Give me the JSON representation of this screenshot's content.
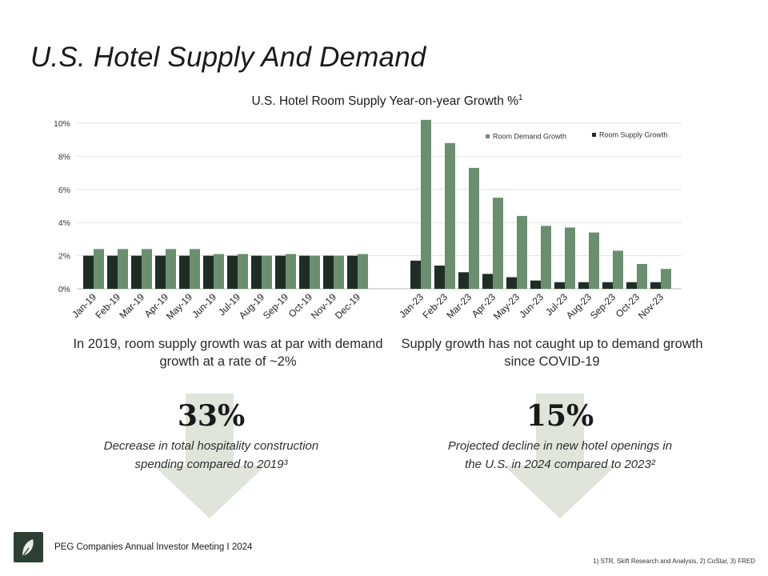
{
  "slide": {
    "title": "U.S. Hotel Supply And Demand"
  },
  "colors": {
    "demand": "#6a8f6f",
    "supply": "#1f2e25",
    "arrow": "#dfe5db",
    "gridline": "#e3e3e3",
    "logo_bg": "#2c3f33",
    "logo_leaf": "#e9ede4"
  },
  "chart_data": {
    "type": "bar",
    "title": "U.S. Hotel Room Supply Year-on-year Growth %",
    "title_superscript": "1",
    "xlabel": "",
    "ylabel": "",
    "ylim": [
      0,
      10
    ],
    "yticks": [
      0,
      2,
      4,
      6,
      8,
      10
    ],
    "ytick_labels": [
      "0%",
      "2%",
      "4%",
      "6%",
      "8%",
      "10%"
    ],
    "legend_position": "top-right",
    "groups": [
      {
        "categories": [
          "Jan-19",
          "Feb-19",
          "Mar-19",
          "Apr-19",
          "May-19",
          "Jun-19",
          "Jul-19",
          "Aug-19",
          "Sep-19",
          "Oct-19",
          "Nov-19",
          "Dec-19"
        ],
        "series": [
          {
            "name": "Room Supply Growth",
            "values": [
              2.0,
              2.0,
              2.0,
              2.0,
              2.0,
              2.0,
              2.0,
              2.0,
              2.0,
              2.0,
              2.0,
              2.0
            ]
          },
          {
            "name": "Room Demand Growth",
            "values": [
              2.4,
              2.4,
              2.4,
              2.4,
              2.4,
              2.1,
              2.1,
              2.0,
              2.1,
              2.0,
              2.0,
              2.1
            ]
          }
        ]
      },
      {
        "categories": [
          "Jan-23",
          "Feb-23",
          "Mar-23",
          "Apr-23",
          "May-23",
          "Jun-23",
          "Jul-23",
          "Aug-23",
          "Sep-23",
          "Oct-23",
          "Nov-23"
        ],
        "series": [
          {
            "name": "Room Supply Growth",
            "values": [
              1.7,
              1.4,
              1.0,
              0.9,
              0.7,
              0.5,
              0.4,
              0.4,
              0.4,
              0.4,
              0.4
            ]
          },
          {
            "name": "Room Demand Growth",
            "values": [
              10.2,
              8.8,
              7.3,
              5.5,
              4.4,
              3.8,
              3.7,
              3.4,
              2.3,
              1.5,
              1.2
            ]
          }
        ]
      }
    ],
    "legend": [
      "Room Demand Growth",
      "Room Supply Growth"
    ]
  },
  "captions": {
    "left": "In 2019, room supply growth was at par with demand growth at a rate of ~2%",
    "right": "Supply growth has not caught up to demand growth since COVID-19"
  },
  "stats": [
    {
      "value": "33%",
      "description": "Decrease in total hospitality construction spending compared to 2019³"
    },
    {
      "value": "15%",
      "description": "Projected decline in new hotel openings in the U.S. in 2024 compared to 2023²"
    }
  ],
  "footer": {
    "logo_icon": "leaf-logo-icon",
    "text": "PEG Companies Annual Investor Meeting I 2024",
    "sources": "1) STR, Skift Research and Analysis, 2) CoStar, 3) FRED"
  }
}
